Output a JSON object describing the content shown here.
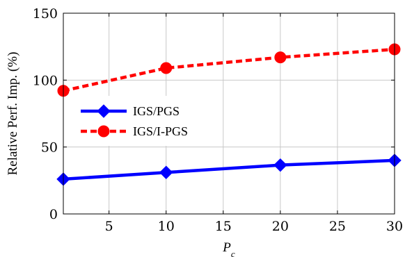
{
  "chart_data": {
    "type": "line",
    "title": "",
    "xlabel": "P_c",
    "xlabel_main": "P",
    "xlabel_sub": "c",
    "ylabel": "Relative Perf. Imp. (%)",
    "xlim": [
      1,
      30
    ],
    "ylim": [
      0,
      150
    ],
    "x_ticks": [
      5,
      10,
      15,
      20,
      25,
      30
    ],
    "y_ticks": [
      0,
      50,
      100,
      150
    ],
    "grid": true,
    "legend_position": "upper-left",
    "series": [
      {
        "name": "IGS/PGS",
        "color": "#0000ff",
        "marker": "diamond",
        "line_style": "solid",
        "x": [
          1,
          10,
          20,
          30
        ],
        "y": [
          26,
          31,
          36.5,
          40
        ]
      },
      {
        "name": "IGS/I-PGS",
        "color": "#ff0000",
        "marker": "circle",
        "line_style": "dashed",
        "x": [
          1,
          10,
          20,
          30
        ],
        "y": [
          92,
          109,
          117,
          123
        ]
      }
    ]
  }
}
